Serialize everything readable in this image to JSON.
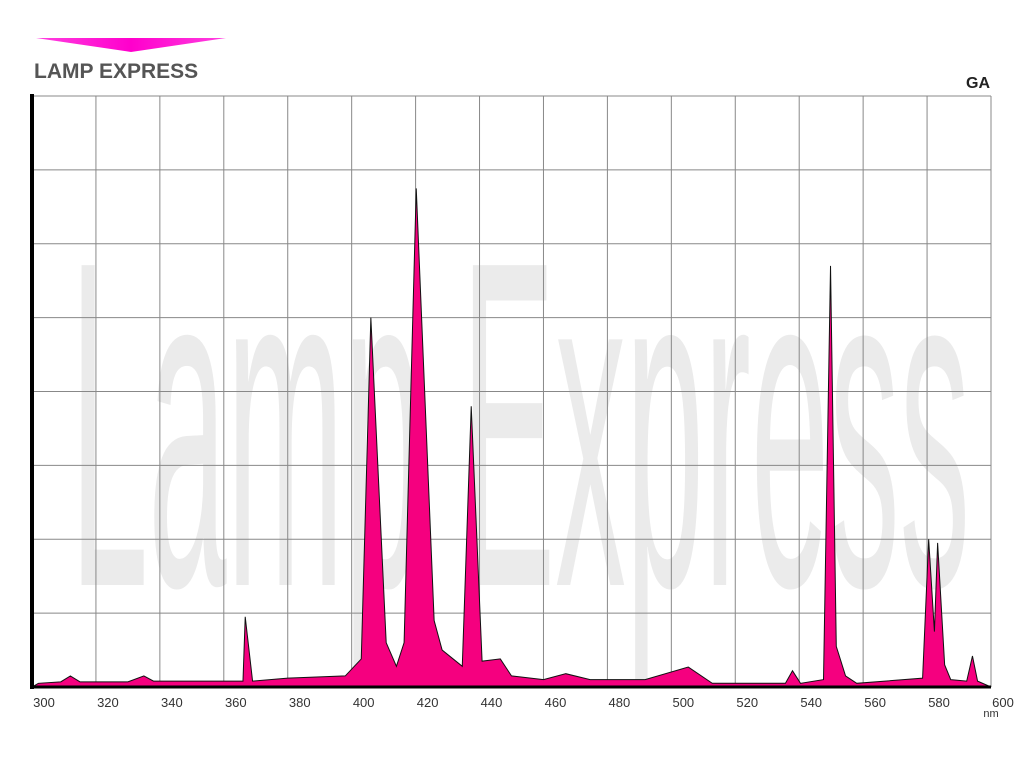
{
  "chart_data": {
    "type": "area",
    "title": "LAMP EXPRESS",
    "series_label": "GA",
    "watermark": "Lamp Express",
    "x_label": "nm",
    "color": "#f5007f",
    "grid": true,
    "xlim": [
      300,
      600
    ],
    "xticks": [
      300,
      320,
      340,
      360,
      380,
      400,
      420,
      440,
      460,
      480,
      500,
      520,
      540,
      560,
      580,
      600
    ],
    "ylim": [
      0,
      8
    ],
    "x": [
      300,
      302,
      309,
      312,
      315,
      330,
      335,
      338,
      366,
      366.7,
      369,
      380,
      398,
      403,
      406,
      410.8,
      414,
      416.4,
      420.2,
      425.8,
      428.3,
      434.6,
      437.4,
      440.8,
      446.5,
      450,
      460,
      467,
      474.6,
      491.8,
      505.3,
      512.8,
      535.7,
      537.9,
      540.4,
      547.6,
      549.8,
      551.6,
      554.5,
      558,
      578.6,
      580.5,
      582.3,
      583.3,
      585.5,
      587.4,
      592.4,
      594.2,
      595.8,
      600
    ],
    "values": [
      0,
      0.05,
      0.07,
      0.15,
      0.07,
      0.07,
      0.15,
      0.08,
      0.08,
      0.95,
      0.08,
      0.12,
      0.15,
      0.38,
      5.0,
      0.6,
      0.28,
      0.6,
      6.75,
      0.9,
      0.5,
      0.28,
      3.8,
      0.35,
      0.38,
      0.15,
      0.1,
      0.18,
      0.1,
      0.1,
      0.27,
      0.05,
      0.05,
      0.22,
      0.05,
      0.1,
      5.7,
      0.55,
      0.15,
      0.05,
      0.12,
      2.0,
      0.75,
      1.95,
      0.3,
      0.1,
      0.08,
      0.42,
      0.08,
      0
    ]
  }
}
